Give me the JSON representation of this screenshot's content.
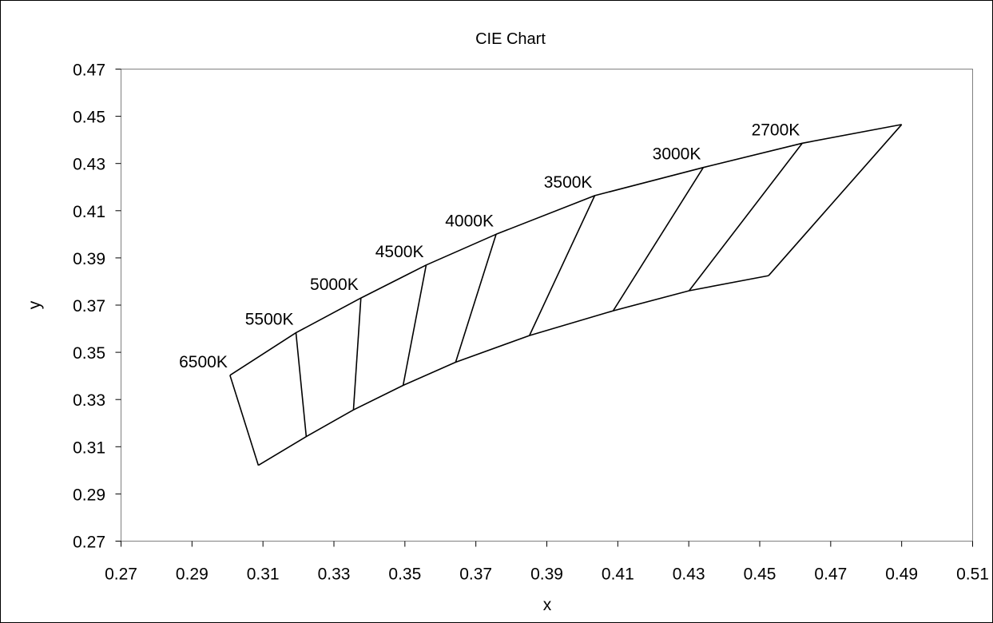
{
  "chart_data": {
    "type": "line",
    "title": "CIE Chart",
    "xlabel": "x",
    "ylabel": "y",
    "xlim": [
      0.27,
      0.51
    ],
    "ylim": [
      0.27,
      0.47
    ],
    "x_ticks": [
      "0.27",
      "0.29",
      "0.31",
      "0.33",
      "0.35",
      "0.37",
      "0.39",
      "0.41",
      "0.43",
      "0.45",
      "0.47",
      "0.49",
      "0.51"
    ],
    "y_ticks": [
      "0.27",
      "0.29",
      "0.31",
      "0.33",
      "0.35",
      "0.37",
      "0.39",
      "0.41",
      "0.43",
      "0.45",
      "0.47"
    ],
    "grid": false,
    "legend": "none",
    "line_color": "#000000",
    "boundaries": [
      {
        "x": [
          0.3007,
          0.3087
        ],
        "y": [
          0.3403,
          0.3021
        ]
      },
      {
        "x": [
          0.3193,
          0.3222
        ],
        "y": [
          0.3583,
          0.3143
        ]
      },
      {
        "x": [
          0.3376,
          0.3355
        ],
        "y": [
          0.373,
          0.3256
        ]
      },
      {
        "x": [
          0.356,
          0.3495
        ],
        "y": [
          0.387,
          0.336
        ]
      },
      {
        "x": [
          0.3757,
          0.3643
        ],
        "y": [
          0.4,
          0.3458
        ]
      },
      {
        "x": [
          0.4035,
          0.3851
        ],
        "y": [
          0.4164,
          0.3571
        ]
      },
      {
        "x": [
          0.4341,
          0.4087
        ],
        "y": [
          0.4283,
          0.3676
        ]
      },
      {
        "x": [
          0.462,
          0.4301
        ],
        "y": [
          0.4386,
          0.3761
        ]
      },
      {
        "x": [
          0.49,
          0.4525
        ],
        "y": [
          0.4465,
          0.3825
        ]
      }
    ],
    "annotations": [
      {
        "text": "6500K",
        "x": 0.3007,
        "y": 0.3403
      },
      {
        "text": "5500K",
        "x": 0.3193,
        "y": 0.3583
      },
      {
        "text": "5000K",
        "x": 0.3376,
        "y": 0.373
      },
      {
        "text": "4500K",
        "x": 0.356,
        "y": 0.387
      },
      {
        "text": "4000K",
        "x": 0.3757,
        "y": 0.4
      },
      {
        "text": "3500K",
        "x": 0.4035,
        "y": 0.4164
      },
      {
        "text": "3000K",
        "x": 0.4341,
        "y": 0.4283
      },
      {
        "text": "2700K",
        "x": 0.462,
        "y": 0.4386
      }
    ]
  }
}
